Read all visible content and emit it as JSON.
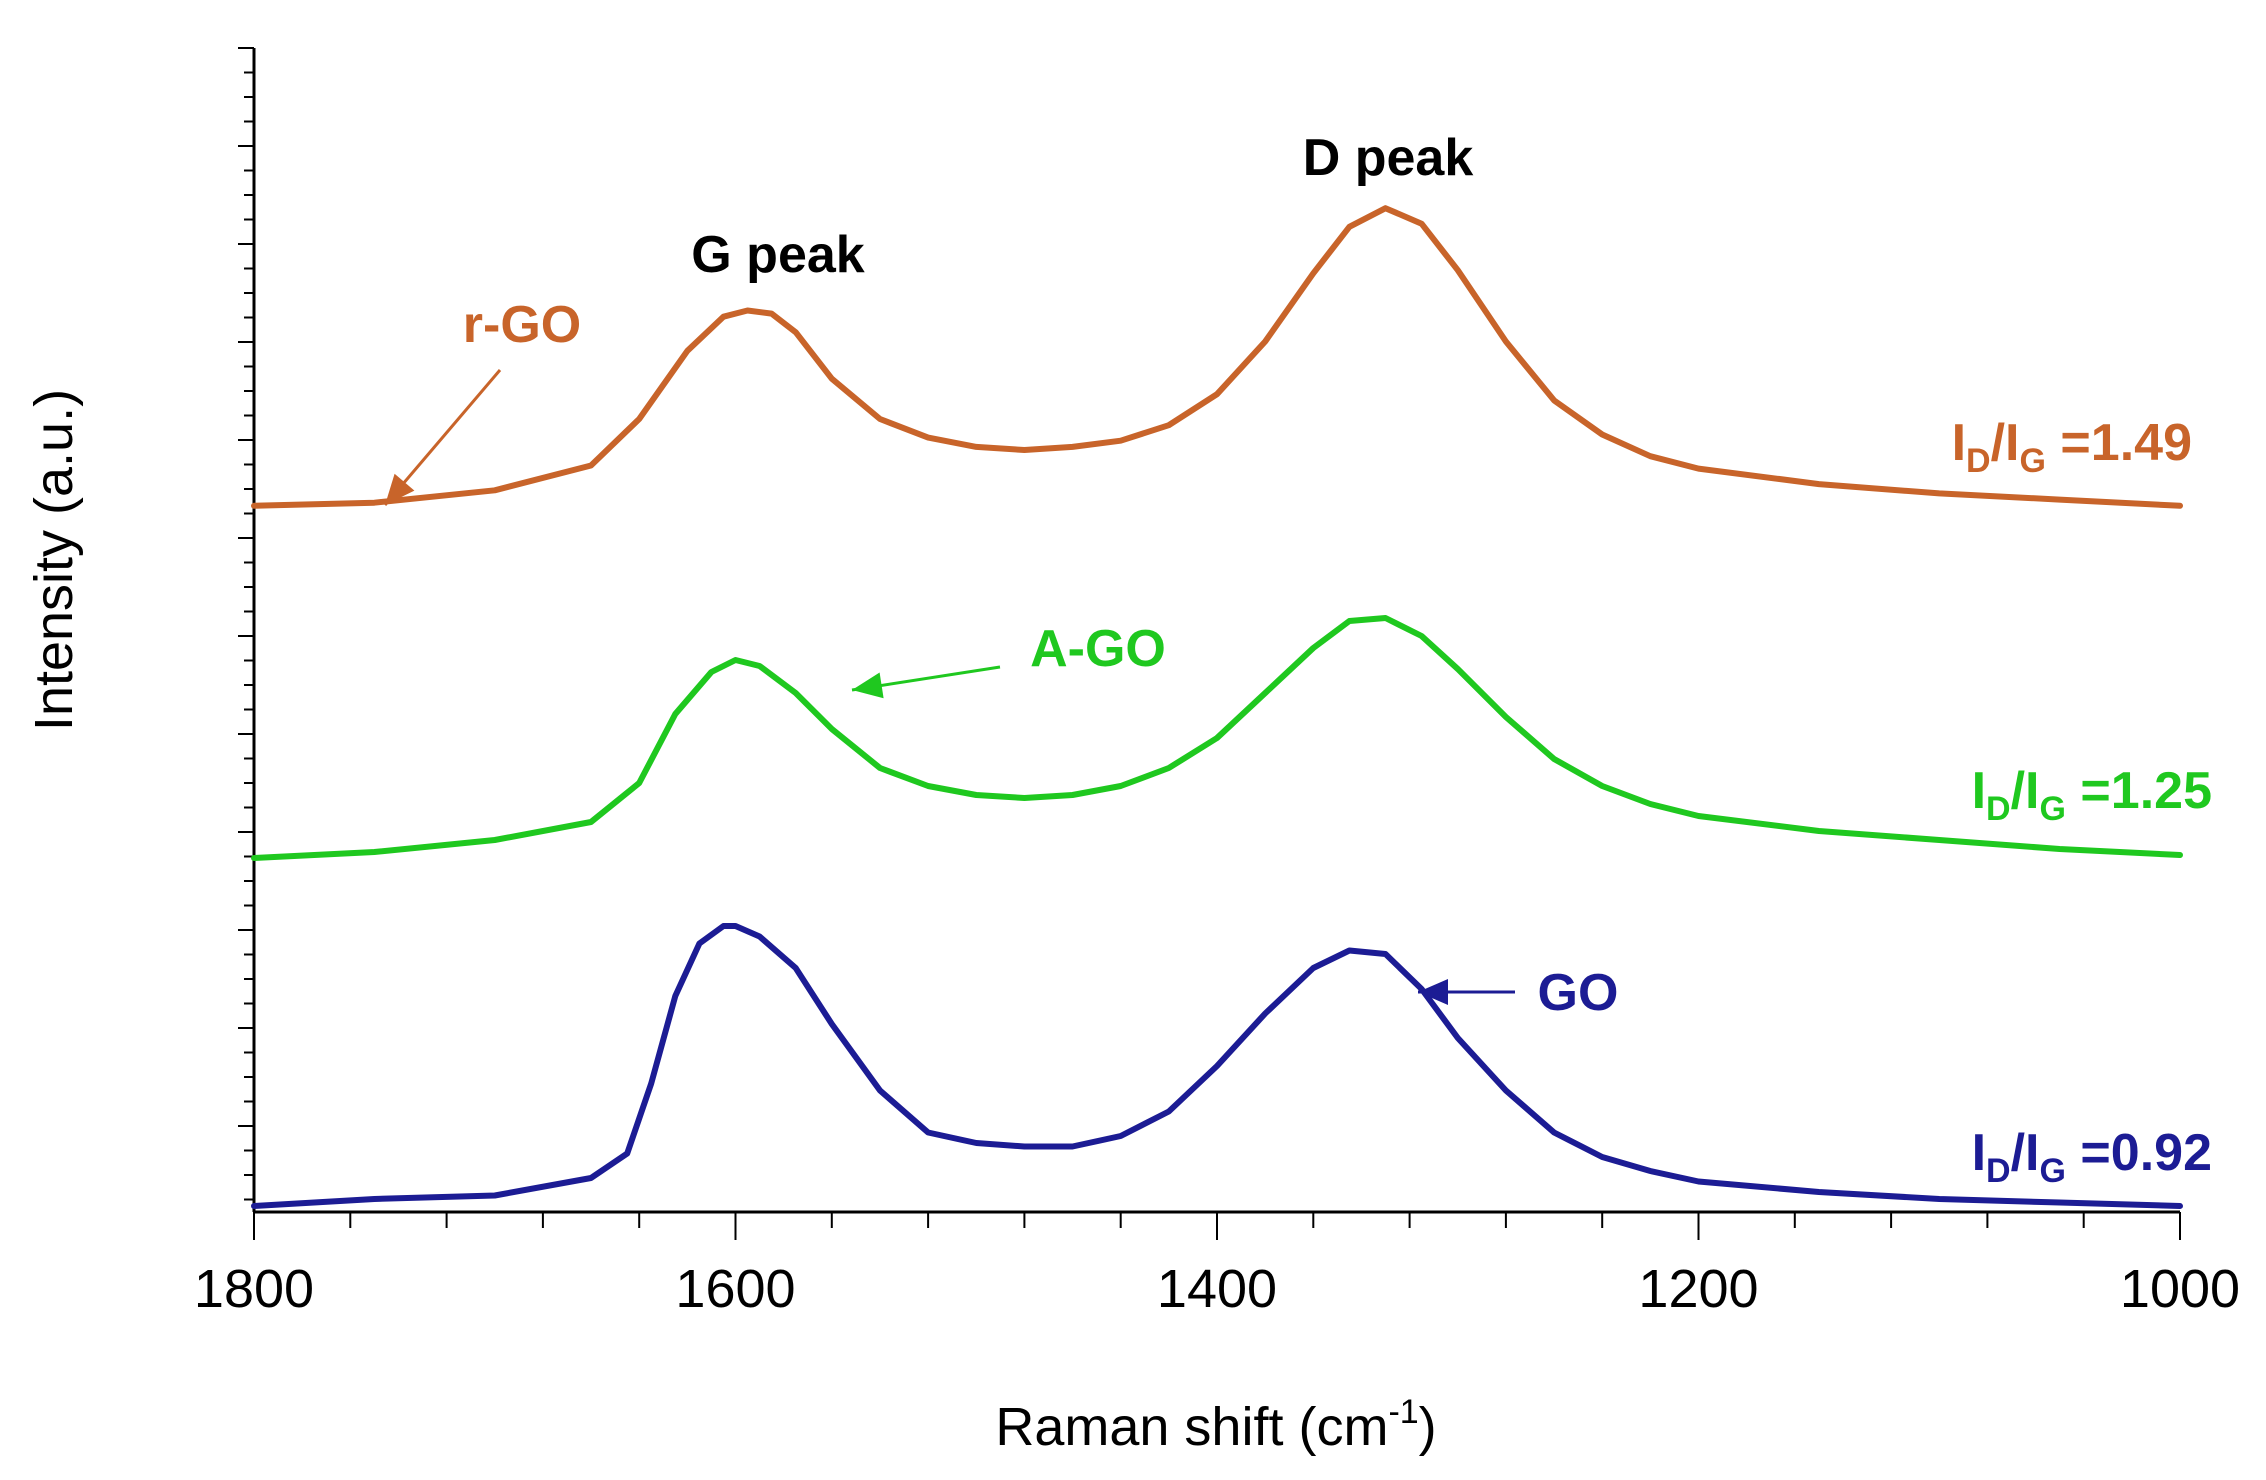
{
  "chart_data": {
    "type": "line",
    "xlabel": "Raman shift (cm",
    "xlabel_sup": "-1",
    "xlabel_close": ")",
    "ylabel": "Intensity (a.u.)",
    "xlim": [
      1800,
      1000
    ],
    "x_ticks": [
      "1800",
      "1600",
      "1400",
      "1200",
      "1000"
    ],
    "x_tick_values": [
      1800,
      1600,
      1400,
      1200,
      1000
    ],
    "y_ticks_shown": false,
    "grid": false,
    "legend": "none",
    "annotations": {
      "g_peak": "G peak",
      "d_peak": "D peak"
    },
    "series": [
      {
        "name": "r-GO",
        "color": "#c8642a",
        "ratio_main": "I",
        "ratio_sub1": "D",
        "ratio_slash": "/I",
        "ratio_sub2": "G",
        "ratio_value": " =1.49",
        "x": [
          1800,
          1750,
          1700,
          1660,
          1640,
          1620,
          1605,
          1595,
          1585,
          1575,
          1560,
          1540,
          1520,
          1500,
          1480,
          1460,
          1440,
          1420,
          1400,
          1380,
          1360,
          1345,
          1330,
          1315,
          1300,
          1280,
          1260,
          1240,
          1220,
          1200,
          1150,
          1100,
          1050,
          1000
        ],
        "y": [
          0.02,
          0.03,
          0.07,
          0.15,
          0.3,
          0.52,
          0.63,
          0.65,
          0.64,
          0.58,
          0.43,
          0.3,
          0.24,
          0.21,
          0.2,
          0.21,
          0.23,
          0.28,
          0.38,
          0.55,
          0.77,
          0.92,
          0.98,
          0.93,
          0.78,
          0.55,
          0.36,
          0.25,
          0.18,
          0.14,
          0.09,
          0.06,
          0.04,
          0.02
        ]
      },
      {
        "name": "A-GO",
        "color": "#1fc81f",
        "ratio_main": "I",
        "ratio_sub1": "D",
        "ratio_slash": "/I",
        "ratio_sub2": "G",
        "ratio_value": " =1.25",
        "x": [
          1800,
          1750,
          1700,
          1660,
          1640,
          1625,
          1610,
          1600,
          1590,
          1575,
          1560,
          1540,
          1520,
          1500,
          1480,
          1460,
          1440,
          1420,
          1400,
          1380,
          1360,
          1345,
          1330,
          1315,
          1300,
          1280,
          1260,
          1240,
          1220,
          1200,
          1150,
          1100,
          1050,
          1000
        ],
        "y": [
          0.0,
          0.02,
          0.06,
          0.12,
          0.25,
          0.48,
          0.62,
          0.66,
          0.64,
          0.55,
          0.43,
          0.3,
          0.24,
          0.21,
          0.2,
          0.21,
          0.24,
          0.3,
          0.4,
          0.55,
          0.7,
          0.79,
          0.8,
          0.74,
          0.63,
          0.47,
          0.33,
          0.24,
          0.18,
          0.14,
          0.09,
          0.06,
          0.03,
          0.01
        ]
      },
      {
        "name": "GO",
        "color": "#1c1c94",
        "ratio_main": "I",
        "ratio_sub1": "D",
        "ratio_slash": "/I",
        "ratio_sub2": "G",
        "ratio_value": " =0.92",
        "x": [
          1800,
          1750,
          1700,
          1660,
          1645,
          1635,
          1625,
          1615,
          1605,
          1600,
          1590,
          1575,
          1560,
          1540,
          1520,
          1500,
          1480,
          1460,
          1440,
          1420,
          1400,
          1380,
          1360,
          1345,
          1330,
          1315,
          1300,
          1280,
          1260,
          1240,
          1220,
          1200,
          1150,
          1100,
          1050,
          1000
        ],
        "y": [
          0.0,
          0.02,
          0.03,
          0.08,
          0.15,
          0.35,
          0.6,
          0.75,
          0.8,
          0.8,
          0.77,
          0.68,
          0.52,
          0.33,
          0.21,
          0.18,
          0.17,
          0.17,
          0.2,
          0.27,
          0.4,
          0.55,
          0.68,
          0.73,
          0.72,
          0.62,
          0.48,
          0.33,
          0.21,
          0.14,
          0.1,
          0.07,
          0.04,
          0.02,
          0.01,
          0.0
        ]
      }
    ]
  }
}
